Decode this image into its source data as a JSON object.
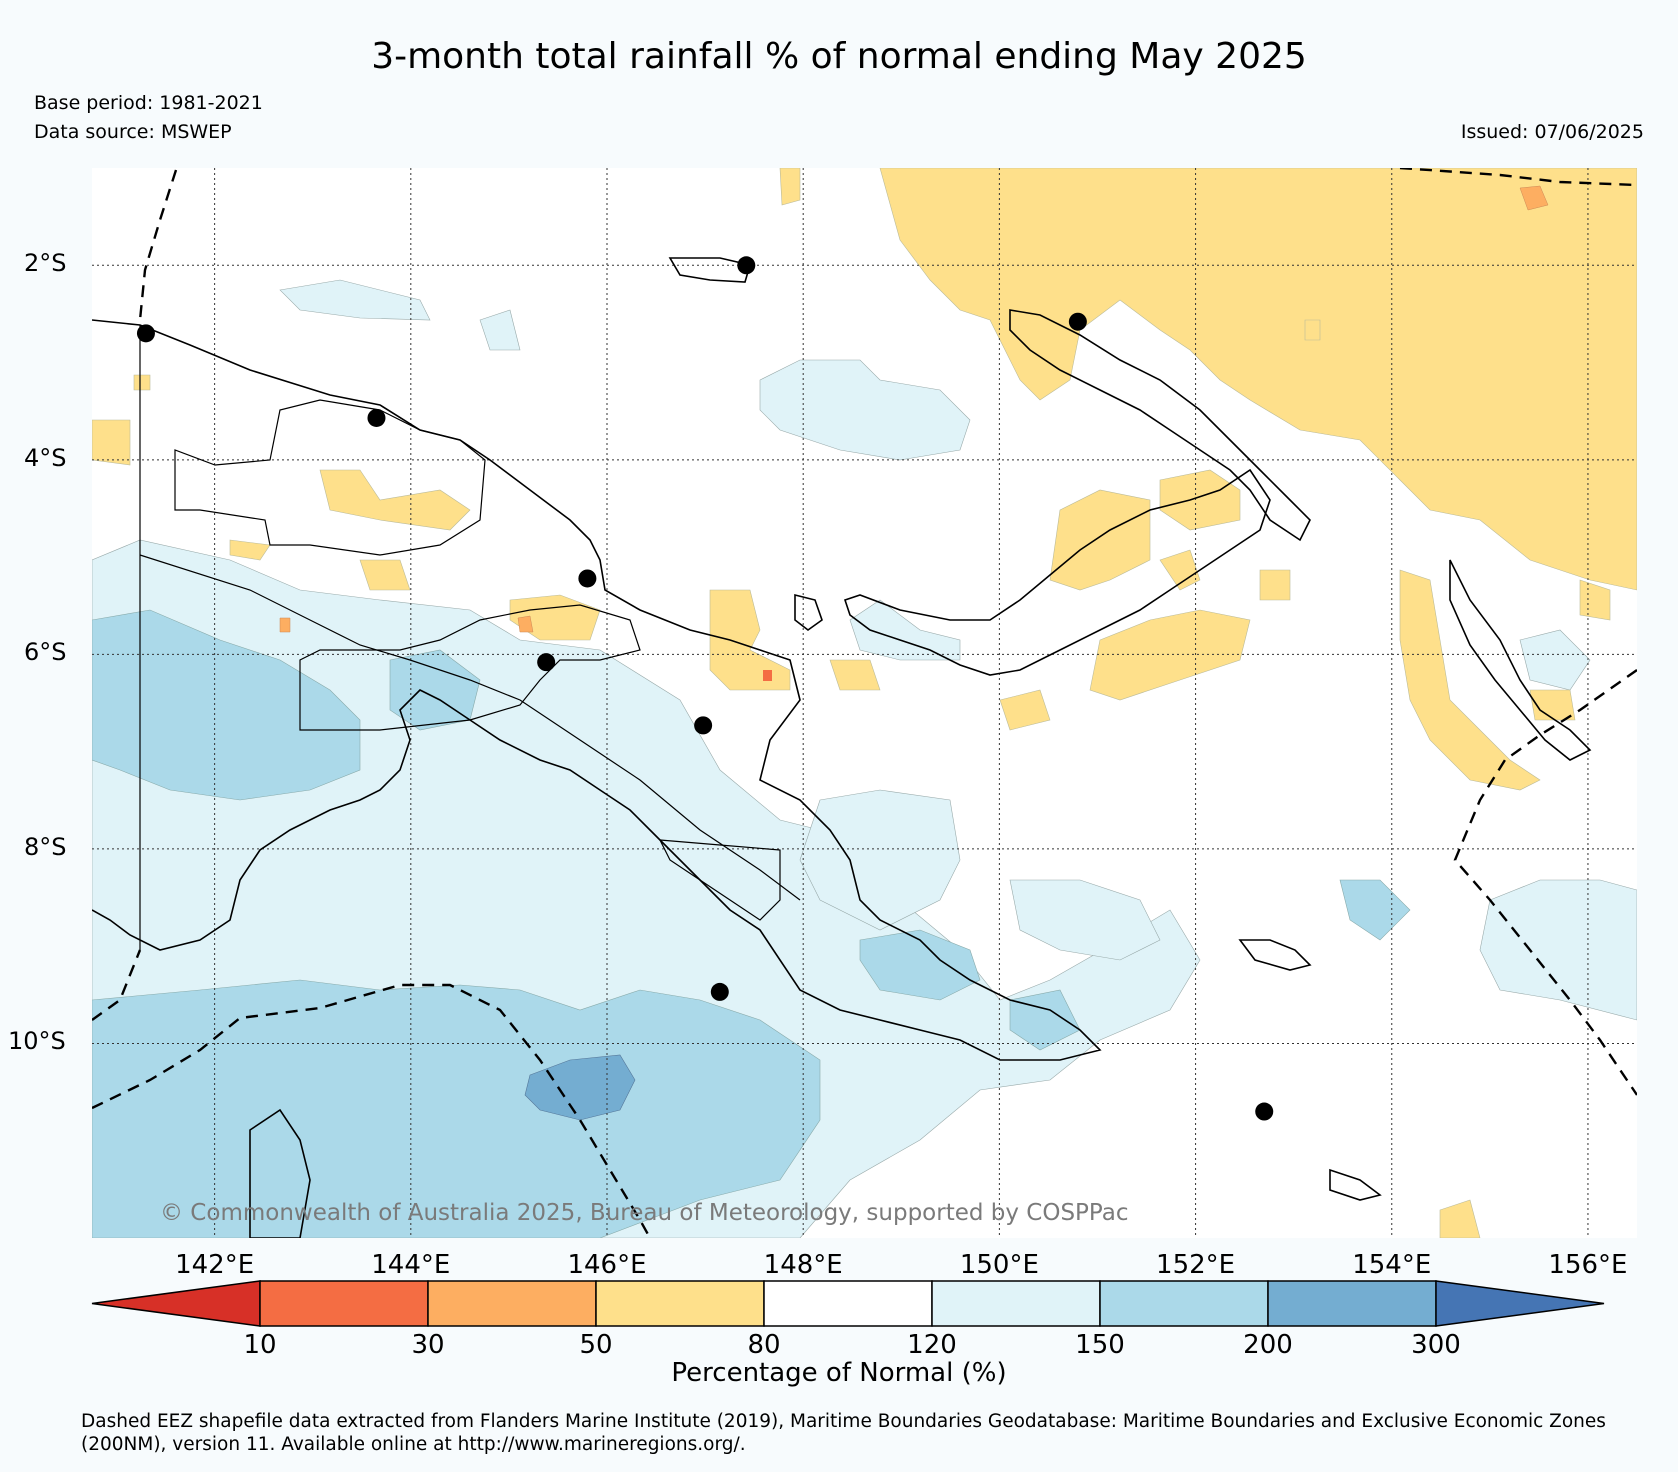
{
  "title": "3-month total rainfall % of normal ending May 2025",
  "base_period": "Base period: 1981-2021",
  "data_source": "Data source: MSWEP",
  "issued": "Issued: 07/06/2025",
  "copyright": "© Commonwealth of Australia 2025, Bureau of Meteorology, supported by COSPPac",
  "footnote": "Dashed EEZ shapefile data extracted from Flanders Marine Institute (2019), Maritime Boundaries Geodatabase: Maritime Boundaries and Exclusive Economic Zones (200NM), version 11. Available online at http://www.marineregions.org/.",
  "map": {
    "region": "Papua New Guinea",
    "lon_range": [
      140.75,
      156.5
    ],
    "lat_range": [
      -12.0,
      -1.0
    ],
    "lon_ticks": [
      {
        "value": 142,
        "label": "142°E"
      },
      {
        "value": 144,
        "label": "144°E"
      },
      {
        "value": 146,
        "label": "146°E"
      },
      {
        "value": 148,
        "label": "148°E"
      },
      {
        "value": 150,
        "label": "150°E"
      },
      {
        "value": 152,
        "label": "152°E"
      },
      {
        "value": 154,
        "label": "154°E"
      },
      {
        "value": 156,
        "label": "156°E"
      }
    ],
    "lat_ticks": [
      {
        "value": -2,
        "label": "2°S"
      },
      {
        "value": -4,
        "label": "4°S"
      },
      {
        "value": -6,
        "label": "6°S"
      },
      {
        "value": -8,
        "label": "8°S"
      },
      {
        "value": -10,
        "label": "10°S"
      }
    ],
    "stations": [
      {
        "lon": 141.3,
        "lat": -2.7
      },
      {
        "lon": 143.65,
        "lat": -3.57
      },
      {
        "lon": 145.8,
        "lat": -5.22
      },
      {
        "lon": 145.38,
        "lat": -6.08
      },
      {
        "lon": 146.98,
        "lat": -6.73
      },
      {
        "lon": 147.42,
        "lat": -2.0
      },
      {
        "lon": 150.8,
        "lat": -2.58
      },
      {
        "lon": 147.15,
        "lat": -9.47
      },
      {
        "lon": 152.7,
        "lat": -10.7
      }
    ],
    "grid": true,
    "colors": {
      "below_10": "#d73027",
      "10_30": "#f46d43",
      "30_50": "#fdae61",
      "50_80": "#fee08b",
      "80_120": "#ffffff",
      "120_150": "#e0f3f8",
      "150_200": "#abd9e9",
      "200_300": "#74add1",
      "above_300": "#4575b4"
    }
  },
  "colorbar": {
    "label": "Percentage of Normal (%)",
    "ticks": [
      "10",
      "30",
      "50",
      "80",
      "120",
      "150",
      "200",
      "300"
    ],
    "colors": [
      "#d73027",
      "#f46d43",
      "#fdae61",
      "#fee08b",
      "#ffffff",
      "#e0f3f8",
      "#abd9e9",
      "#74add1",
      "#4575b4"
    ]
  }
}
